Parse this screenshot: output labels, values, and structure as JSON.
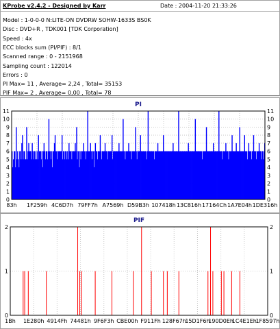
{
  "header": {
    "title": "KProbe v2.4.2 - Designed by Karr",
    "date": "Date : 2004-11-20 21:33:26",
    "lines": [
      "Model : 1-0-0-0 N:LITE-ON DVDRW SOHW-1633S BS0K",
      "Disc : DVD+R , TDK001 [TDK Corporation]",
      "Speed : 4x",
      "ECC blocks sum (PI/PIF) : 8/1",
      "Scanned range : 0 - 2151968",
      "Sampling count : 122014",
      "Errors : 0",
      "PI Max= 11 , Average= 2,24 , Total= 35153",
      "PIF Max= 2 , Average= 0,00 , Total= 78"
    ]
  },
  "chart_data": [
    {
      "type": "bar",
      "title": "PI",
      "ylim": [
        0,
        11
      ],
      "y_ticks": [
        "0",
        "1",
        "2",
        "3",
        "4",
        "5",
        "6",
        "7",
        "8",
        "9",
        "10",
        "11"
      ],
      "x_ticks": [
        "83h",
        "1F259h",
        "4C6D7h",
        "79FF7h",
        "A7569h",
        "D59B3h",
        "107418h",
        "13C816h",
        "17164Ch",
        "1A7E04h",
        "1DE316h"
      ],
      "series": [
        {
          "color": "#0000ff"
        }
      ],
      "values": [
        6,
        4,
        5,
        6,
        6,
        4,
        9,
        5,
        6,
        5,
        4,
        6,
        6,
        5,
        7,
        8,
        5,
        6,
        6,
        5,
        5,
        9,
        5,
        6,
        7,
        6,
        6,
        6,
        5,
        7,
        6,
        5,
        6,
        6,
        5,
        5,
        6,
        5,
        8,
        6,
        6,
        6,
        5,
        6,
        4,
        6,
        7,
        6,
        5,
        6,
        6,
        5,
        6,
        10,
        6,
        6,
        5,
        6,
        4,
        6,
        6,
        7,
        8,
        6,
        6,
        5,
        6,
        6,
        6,
        6,
        6,
        6,
        8,
        5,
        6,
        6,
        5,
        6,
        6,
        5,
        6,
        5,
        7,
        6,
        6,
        6,
        5,
        6,
        6,
        6,
        6,
        7,
        6,
        9,
        5,
        6,
        6,
        4,
        6,
        5,
        6,
        6,
        6,
        7,
        6,
        6,
        5,
        6,
        6,
        11,
        6,
        6,
        6,
        7,
        6,
        5,
        6,
        6,
        4,
        6,
        7,
        6,
        6,
        5,
        6,
        6,
        6,
        8,
        6,
        5,
        6,
        6,
        6,
        6,
        7,
        6,
        6,
        6,
        5,
        6,
        6,
        6,
        6,
        6,
        8,
        5,
        6,
        6,
        6,
        6,
        6,
        6,
        6,
        6,
        7,
        6,
        6,
        6,
        6,
        6,
        10,
        6,
        6,
        5,
        6,
        6,
        6,
        6,
        7,
        6,
        6,
        6,
        5,
        6,
        6,
        6,
        6,
        6,
        9,
        6,
        5,
        6,
        6,
        6,
        6,
        8,
        6,
        6,
        6,
        6,
        6,
        6,
        6,
        6,
        5,
        6,
        11,
        6,
        6,
        6,
        6,
        6,
        6,
        6,
        6,
        5,
        6,
        6,
        6,
        6,
        7,
        6,
        6,
        6,
        6,
        6,
        6,
        6,
        8,
        6,
        6,
        6,
        6,
        6,
        6,
        6,
        6,
        6,
        6,
        6,
        6,
        6,
        7,
        6,
        6,
        6,
        6,
        6,
        6,
        6,
        11,
        6,
        6,
        6,
        6,
        6,
        6,
        6,
        6,
        6,
        6,
        6,
        6,
        6,
        7,
        6,
        6,
        6,
        6,
        6,
        6,
        6,
        6,
        6,
        10,
        6,
        6,
        6,
        6,
        6,
        6,
        6,
        6,
        6,
        5,
        6,
        6,
        6,
        6,
        6,
        9,
        6,
        6,
        6,
        6,
        6,
        6,
        6,
        6,
        6,
        7,
        6,
        6,
        6,
        6,
        6,
        6,
        6,
        11,
        6,
        6,
        6,
        6,
        5,
        6,
        6,
        6,
        6,
        7,
        6,
        6,
        6,
        5,
        6,
        6,
        6,
        6,
        8,
        6,
        6,
        6,
        6,
        6,
        7,
        6,
        6,
        6,
        6,
        9,
        6,
        6,
        6,
        6,
        6,
        6,
        8,
        6,
        6,
        6,
        5,
        6,
        7,
        6,
        6,
        6,
        5,
        6,
        6,
        8,
        6,
        6,
        6,
        5,
        6,
        6,
        6,
        7,
        6,
        6,
        5,
        6,
        6,
        5,
        6,
        7
      ]
    },
    {
      "type": "bar",
      "title": "PIF",
      "ylim": [
        0,
        2
      ],
      "y_ticks": [
        "0",
        "1",
        "2"
      ],
      "x_ticks": [
        "1Bh",
        "1E280h",
        "4914Fh",
        "74481h",
        "9F6F3h",
        "CBE00h",
        "F911Fh",
        "128F67h",
        "15D1F6h",
        "190D0Eh",
        "1C4E1Eh",
        "1F8597h"
      ],
      "series": [
        {
          "color": "#ff0000"
        }
      ],
      "points": [
        [
          0.05,
          1
        ],
        [
          0.056,
          1
        ],
        [
          0.07,
          1
        ],
        [
          0.14,
          1
        ],
        [
          0.262,
          2
        ],
        [
          0.27,
          1
        ],
        [
          0.277,
          1
        ],
        [
          0.33,
          1
        ],
        [
          0.395,
          1
        ],
        [
          0.478,
          1
        ],
        [
          0.51,
          2
        ],
        [
          0.548,
          1
        ],
        [
          0.595,
          1
        ],
        [
          0.61,
          1
        ],
        [
          0.655,
          1
        ],
        [
          0.768,
          1
        ],
        [
          0.778,
          2
        ],
        [
          0.787,
          1
        ],
        [
          0.82,
          1
        ],
        [
          0.83,
          1
        ],
        [
          0.86,
          1
        ],
        [
          0.892,
          1
        ]
      ]
    }
  ]
}
